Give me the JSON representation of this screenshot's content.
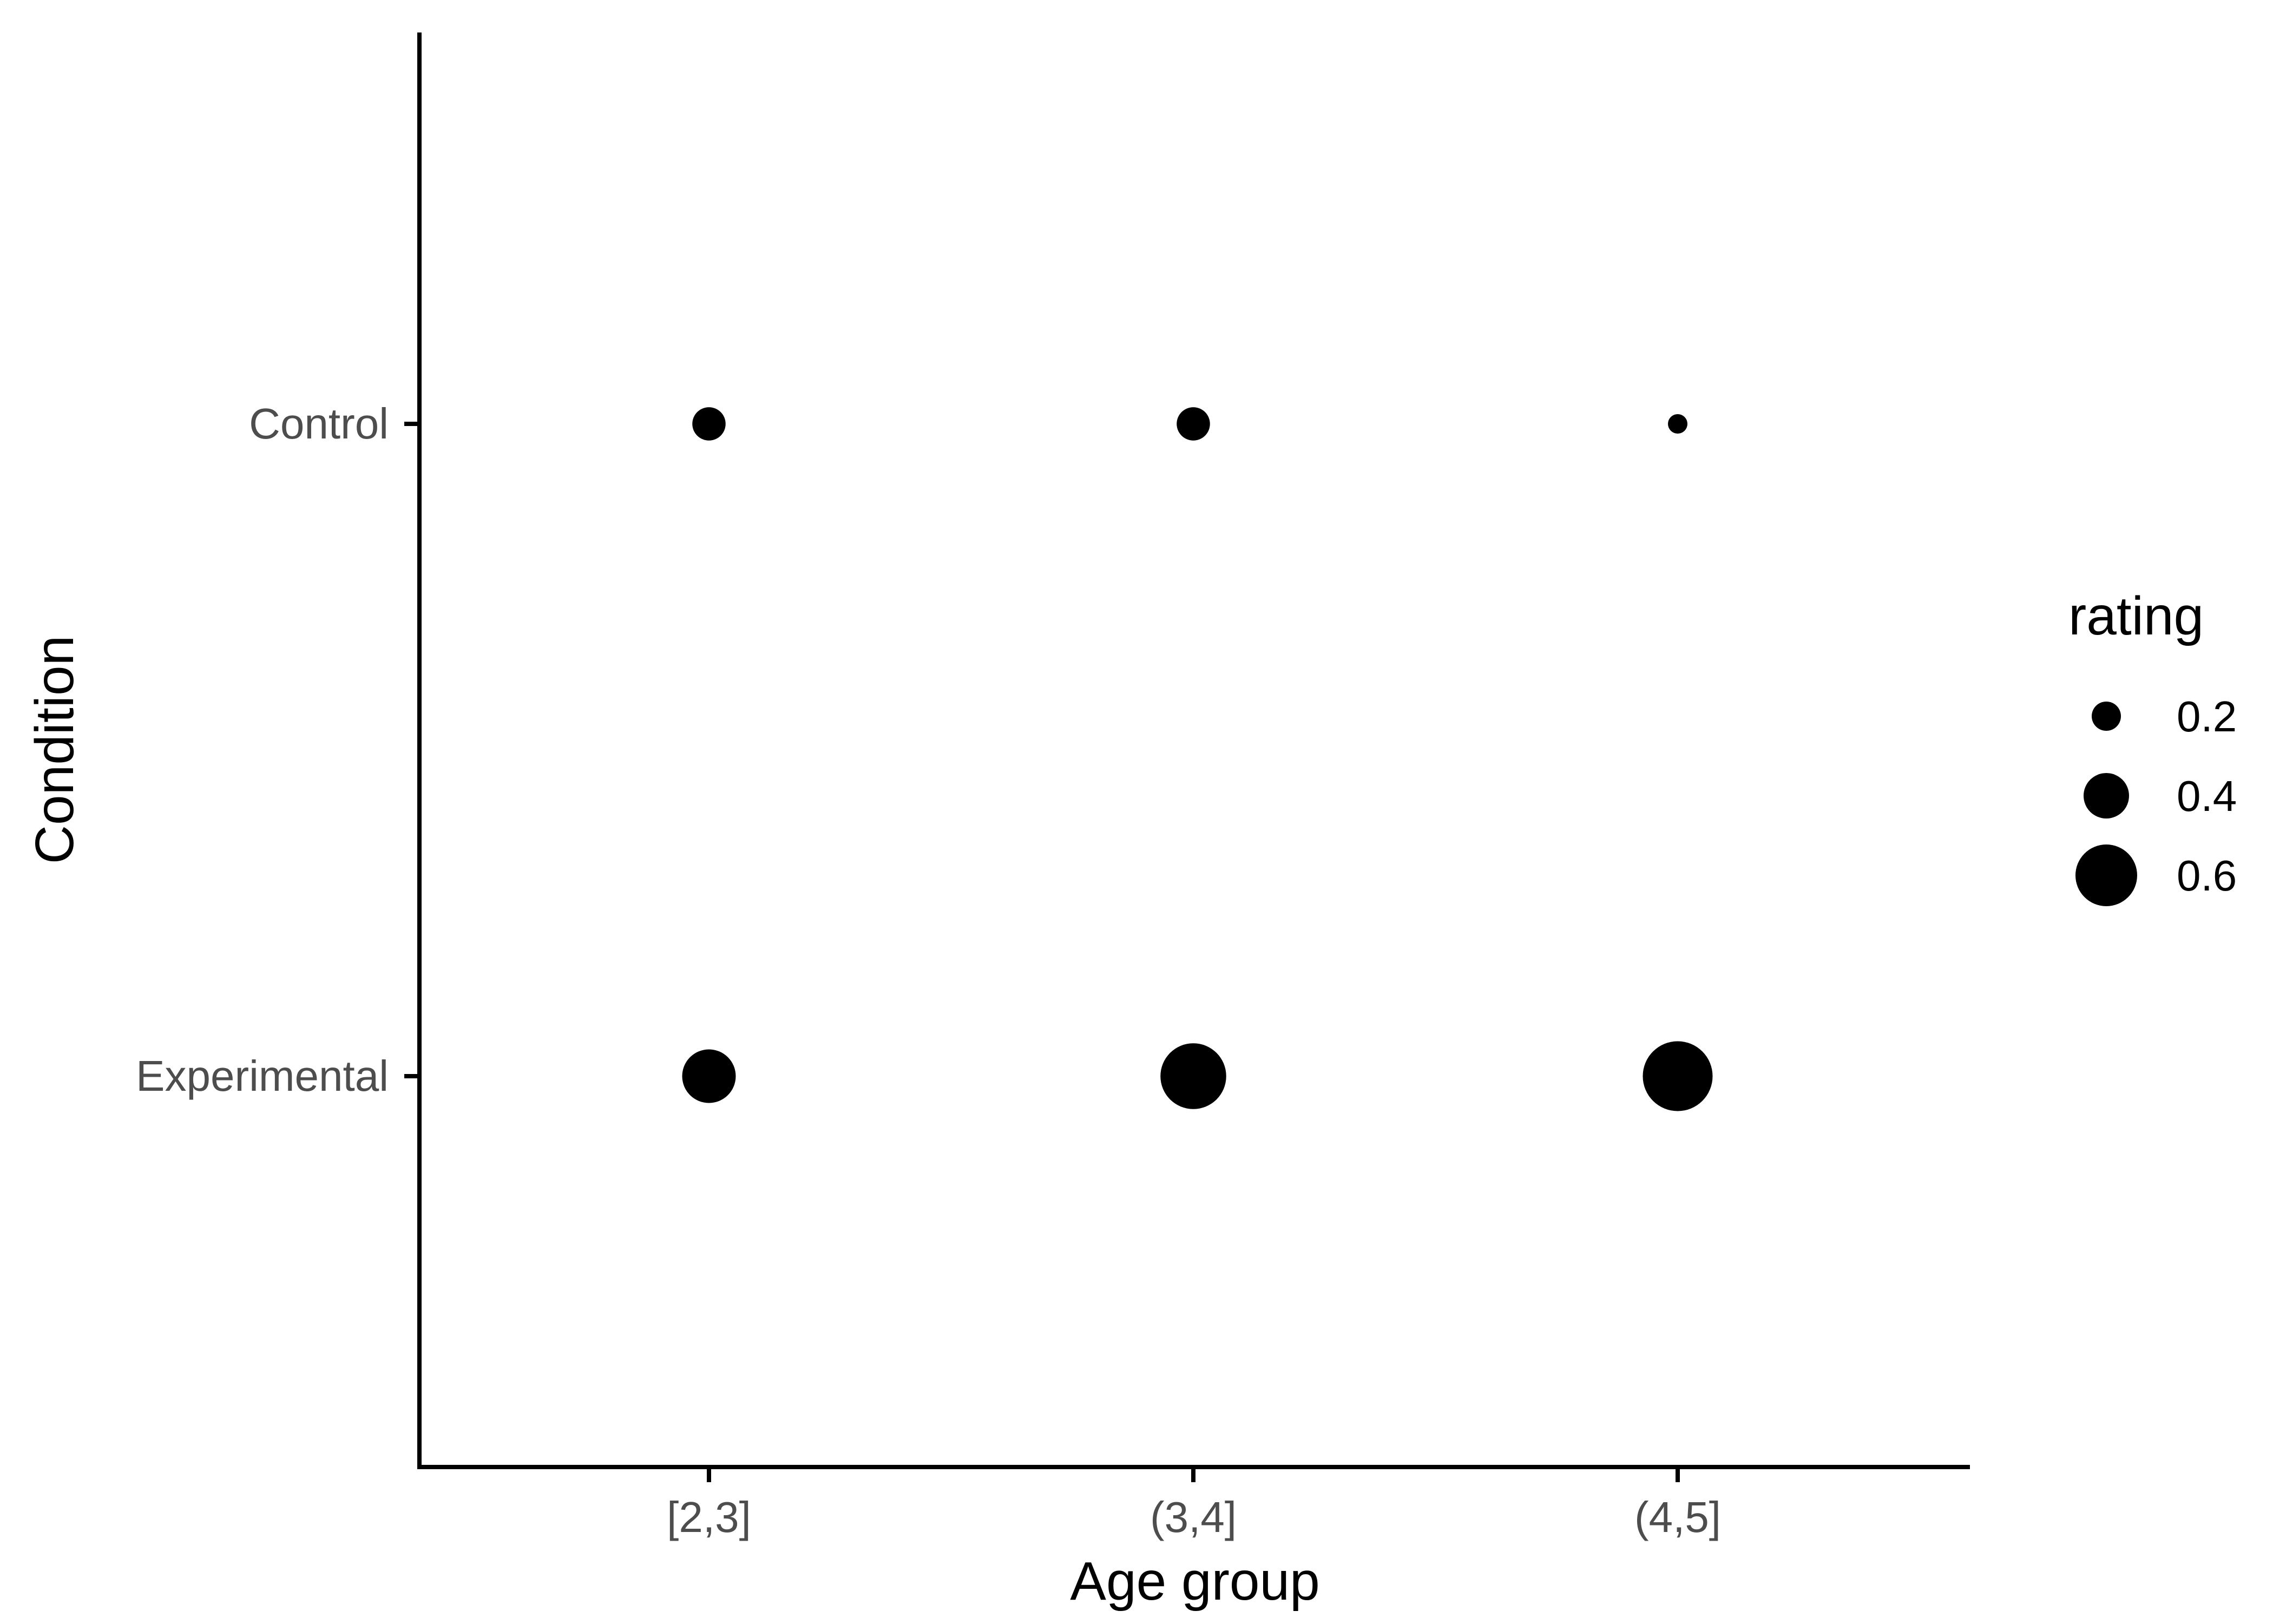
{
  "chart_data": {
    "type": "scatter",
    "xlabel": "Age group",
    "ylabel": "Condition",
    "x_categories": [
      "[2,3]",
      "(3,4]",
      "(4,5]"
    ],
    "y_categories": [
      "Control",
      "Experimental"
    ],
    "size_variable": "rating",
    "points": [
      {
        "x": "[2,3]",
        "y": "Control",
        "rating": 0.25
      },
      {
        "x": "(3,4]",
        "y": "Control",
        "rating": 0.25
      },
      {
        "x": "(4,5]",
        "y": "Control",
        "rating": 0.08
      },
      {
        "x": "[2,3]",
        "y": "Experimental",
        "rating": 0.5
      },
      {
        "x": "(3,4]",
        "y": "Experimental",
        "rating": 0.65
      },
      {
        "x": "(4,5]",
        "y": "Experimental",
        "rating": 0.7
      }
    ],
    "legend": {
      "title": "rating",
      "placement": "right",
      "entries": [
        {
          "label": "0.2",
          "value": 0.2
        },
        {
          "label": "0.4",
          "value": 0.4
        },
        {
          "label": "0.6",
          "value": 0.6
        }
      ]
    },
    "grid": false,
    "colors": {
      "point": "#000000",
      "axis": "#000000",
      "tick_label": "#4d4d4d"
    }
  }
}
